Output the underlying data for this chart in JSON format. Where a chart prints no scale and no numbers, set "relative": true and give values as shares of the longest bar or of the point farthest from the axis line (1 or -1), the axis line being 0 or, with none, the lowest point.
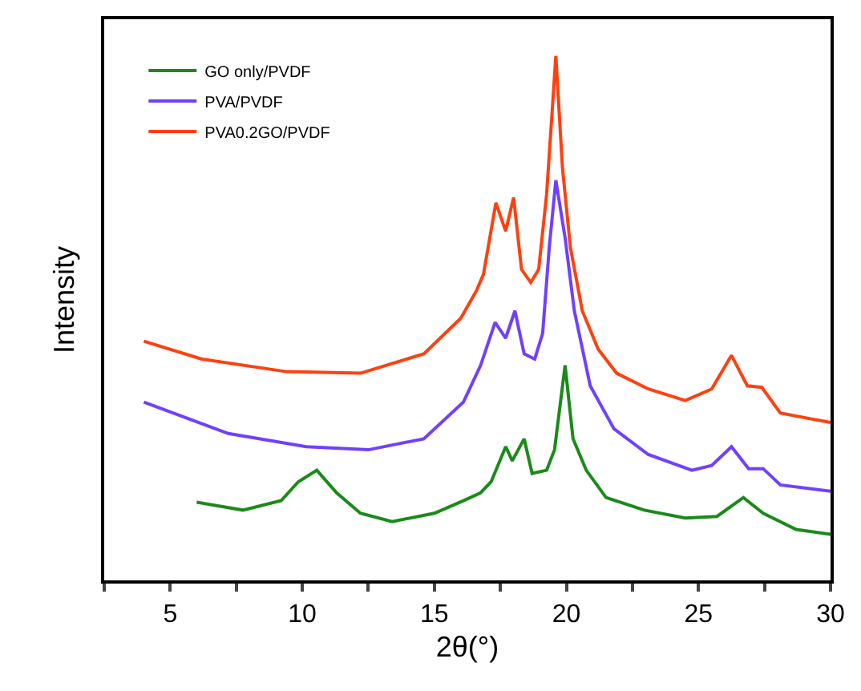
{
  "chart_data": {
    "type": "line",
    "xlabel": "2θ(°)",
    "ylabel": "Intensity",
    "relative": true,
    "legend": "top left",
    "marker": "none",
    "line_style": "solid",
    "xlim": [
      2.5,
      30
    ],
    "xticks": [
      {
        "value": 2.5,
        "label": null
      },
      5,
      {
        "value": 7.5,
        "label": null
      },
      10,
      {
        "value": 12.5,
        "label": null
      },
      15,
      {
        "value": 17.5,
        "label": null
      },
      20,
      {
        "value": 22.5,
        "label": null
      },
      25,
      {
        "value": 27.5,
        "label": null
      },
      30
    ],
    "series": [
      {
        "name": "GO only/PVDF",
        "color": "#1a8a1a",
        "x": [
          6.0,
          7.75,
          9.2,
          9.85,
          10.55,
          11.3,
          12.2,
          13.4,
          15.0,
          16.1,
          16.75,
          17.15,
          17.7,
          17.95,
          18.4,
          18.7,
          19.25,
          19.55,
          19.95,
          20.25,
          20.75,
          21.5,
          22.95,
          24.5,
          25.7,
          26.7,
          27.45,
          28.7,
          30.0
        ],
        "values": [
          0.149,
          0.134,
          0.152,
          0.188,
          0.21,
          0.167,
          0.128,
          0.112,
          0.128,
          0.152,
          0.167,
          0.188,
          0.255,
          0.228,
          0.27,
          0.204,
          0.21,
          0.249,
          0.41,
          0.27,
          0.21,
          0.158,
          0.134,
          0.119,
          0.122,
          0.158,
          0.128,
          0.097,
          0.088
        ]
      },
      {
        "name": "PVA/PVDF",
        "color": "#7040ff",
        "x": [
          4.0,
          7.2,
          10.15,
          12.5,
          14.6,
          16.1,
          16.75,
          17.3,
          17.7,
          18.05,
          18.4,
          18.8,
          19.1,
          19.35,
          19.6,
          19.95,
          20.3,
          20.9,
          21.8,
          23.1,
          24.75,
          25.5,
          26.25,
          26.9,
          27.45,
          28.1,
          30.0
        ],
        "values": [
          0.34,
          0.28,
          0.255,
          0.249,
          0.27,
          0.34,
          0.41,
          0.492,
          0.462,
          0.514,
          0.432,
          0.422,
          0.471,
          0.635,
          0.763,
          0.653,
          0.514,
          0.371,
          0.289,
          0.24,
          0.21,
          0.219,
          0.255,
          0.213,
          0.213,
          0.182,
          0.17
        ]
      },
      {
        "name": "PVA0.2GO/PVDF",
        "color": "#ff4010",
        "x": [
          4.0,
          6.2,
          9.4,
          12.2,
          14.6,
          16.0,
          16.6,
          16.86,
          17.33,
          17.7,
          18.0,
          18.3,
          18.65,
          18.95,
          19.25,
          19.6,
          19.85,
          20.15,
          20.6,
          21.2,
          21.9,
          23.1,
          24.5,
          25.5,
          26.25,
          26.85,
          27.4,
          28.1,
          30.0
        ],
        "values": [
          0.456,
          0.422,
          0.398,
          0.395,
          0.432,
          0.5,
          0.553,
          0.584,
          0.72,
          0.666,
          0.73,
          0.593,
          0.568,
          0.593,
          0.736,
          1.0,
          0.787,
          0.635,
          0.514,
          0.441,
          0.395,
          0.365,
          0.343,
          0.365,
          0.429,
          0.371,
          0.368,
          0.319,
          0.301
        ]
      }
    ]
  }
}
